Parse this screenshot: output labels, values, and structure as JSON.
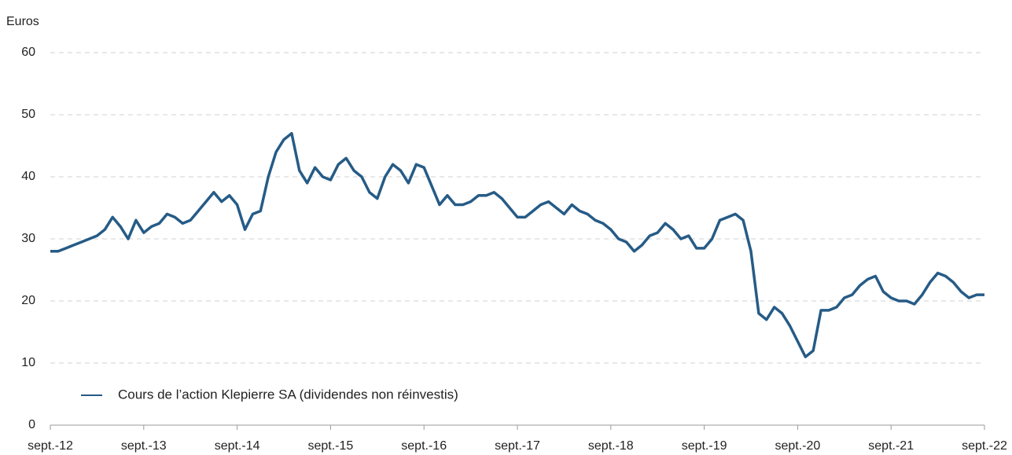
{
  "chart_data": {
    "type": "line",
    "y_label": "Euros",
    "categories": [
      "sept.-12",
      null,
      null,
      null,
      null,
      null,
      null,
      null,
      null,
      null,
      null,
      null,
      "sept.-13",
      null,
      null,
      null,
      null,
      null,
      null,
      null,
      null,
      null,
      null,
      null,
      "sept.-14",
      null,
      null,
      null,
      null,
      null,
      null,
      null,
      null,
      null,
      null,
      null,
      "sept.-15",
      null,
      null,
      null,
      null,
      null,
      null,
      null,
      null,
      null,
      null,
      null,
      "sept.-16",
      null,
      null,
      null,
      null,
      null,
      null,
      null,
      null,
      null,
      null,
      null,
      "sept.-17",
      null,
      null,
      null,
      null,
      null,
      null,
      null,
      null,
      null,
      null,
      null,
      "sept.-18",
      null,
      null,
      null,
      null,
      null,
      null,
      null,
      null,
      null,
      null,
      null,
      "sept.-19",
      null,
      null,
      null,
      null,
      null,
      null,
      null,
      null,
      null,
      null,
      null,
      "sept.-20",
      null,
      null,
      null,
      null,
      null,
      null,
      null,
      null,
      null,
      null,
      null,
      "sept.-21",
      null,
      null,
      null,
      null,
      null,
      null,
      null,
      null,
      null,
      null,
      null,
      "sept.-22"
    ],
    "series": [
      {
        "name": "Cours de l’action Klepierre SA (dividendes non réinvestis)",
        "color": "#265b86",
        "values": [
          28,
          28,
          28.5,
          29,
          29.5,
          30,
          30.5,
          31.5,
          33.5,
          32,
          30,
          33,
          31,
          32,
          32.5,
          34,
          33.5,
          32.5,
          33,
          34.5,
          36,
          37.5,
          36,
          37,
          35.5,
          31.5,
          34,
          34.5,
          40,
          44,
          46,
          47,
          41,
          39,
          41.5,
          40,
          39.5,
          42,
          43,
          41,
          40,
          37.5,
          36.5,
          40,
          42,
          41,
          39,
          42,
          41.5,
          38.5,
          35.5,
          37,
          35.5,
          35.5,
          36,
          37,
          37,
          37.5,
          36.5,
          35,
          33.5,
          33.5,
          34.5,
          35.5,
          36,
          35,
          34,
          35.5,
          34.5,
          34,
          33,
          32.5,
          31.5,
          30,
          29.5,
          28,
          29,
          30.5,
          31,
          32.5,
          31.5,
          30,
          30.5,
          28.5,
          28.5,
          30,
          33,
          33.5,
          34,
          33,
          28,
          18,
          17,
          19,
          18,
          16,
          13.5,
          11,
          12,
          18.5,
          18.5,
          19,
          20.5,
          21,
          22.5,
          23.5,
          24,
          21.5,
          20.5,
          20,
          20,
          19.5,
          21,
          23,
          24.5,
          24,
          23,
          21.5,
          20.5,
          21,
          21
        ]
      }
    ],
    "ylim": [
      0,
      60
    ],
    "yticks": [
      0,
      10,
      20,
      30,
      40,
      50,
      60
    ],
    "grid": true,
    "legend": "lower left"
  }
}
